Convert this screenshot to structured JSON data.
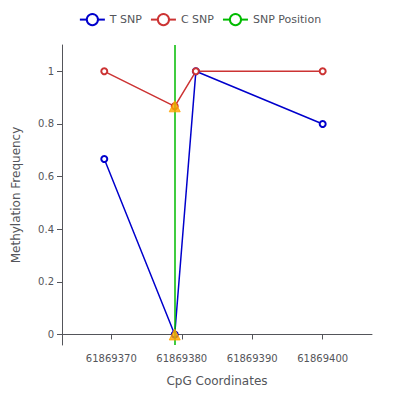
{
  "chart_data": {
    "type": "line",
    "xlabel": "CpG Coordinates",
    "ylabel": "Methylation Frequency",
    "series": [
      {
        "name": "T SNP",
        "type": "line",
        "color": "#0000cc",
        "marker": "circle",
        "x": [
          61869369,
          61869379,
          61869382,
          61869400
        ],
        "values": [
          0.667,
          0.0,
          1.0,
          0.8
        ]
      },
      {
        "name": "C SNP",
        "type": "line",
        "color": "#cc3333",
        "marker": "circle",
        "x": [
          61869369,
          61869379,
          61869382,
          61869400
        ],
        "values": [
          1.0,
          0.867,
          1.0,
          1.0
        ]
      },
      {
        "name": "SNP Position",
        "type": "vline",
        "color": "#00bb00",
        "x": 61869379
      }
    ],
    "snp_markers": {
      "type": "scatter",
      "color": "#FFA500",
      "marker": "triangle",
      "x": [
        61869379,
        61869379
      ],
      "values": [
        0.0,
        0.867
      ]
    },
    "xlim": [
      61869363,
      61869407
    ],
    "xticks": [
      61869370,
      61869380,
      61869390,
      61869400
    ],
    "ylim": [
      -0.04,
      1.1
    ],
    "yticks": [
      0,
      0.2,
      0.4,
      0.6,
      0.8,
      1
    ],
    "grid": false,
    "legend": "top"
  }
}
